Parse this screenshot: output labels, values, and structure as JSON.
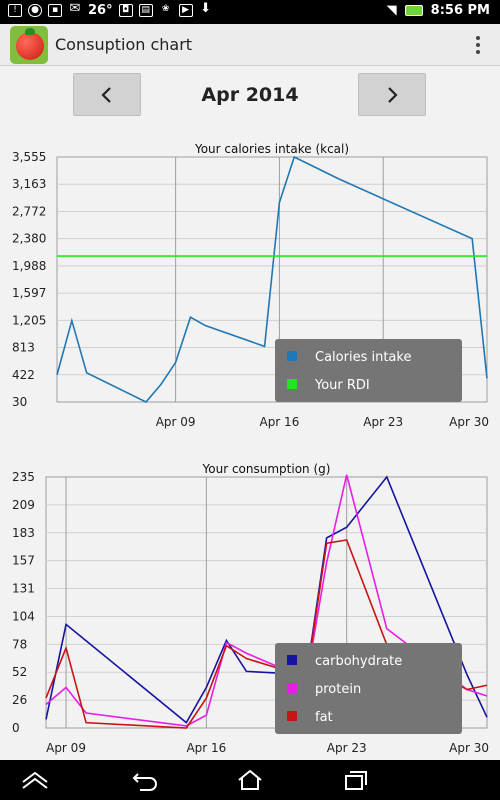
{
  "status_bar": {
    "left_text": "26°",
    "time": "8:56 PM",
    "icons": [
      "notification-icon",
      "media-icon",
      "mail-icon",
      "weather-icon",
      "photo-icon",
      "shopping-icon",
      "file-icon",
      "play-icon",
      "download-icon",
      "wifi-icon",
      "battery-icon"
    ]
  },
  "app_bar": {
    "title": "Consuption chart",
    "icon": "tomato-app-icon"
  },
  "month_nav": {
    "prev_icon": "chevron-left-icon",
    "next_icon": "chevron-right-icon",
    "label": "Apr 2014"
  },
  "colors": {
    "calories_line": "#1f78b4",
    "rdi_line": "#22e61e",
    "carbohydrate": "#1414a0",
    "protein": "#e61ee6",
    "fat": "#c81414",
    "legend_bg": "#757575"
  },
  "chart_data": [
    {
      "type": "line",
      "title": "Your calories intake (kcal)",
      "y_ticks": [
        "3,555",
        "3,163",
        "2,772",
        "2,380",
        "1,988",
        "1,597",
        "1,205",
        "813",
        "422",
        "30"
      ],
      "x_ticks": [
        "Apr 09",
        "Apr 16",
        "Apr 23",
        "Apr 30"
      ],
      "ylim": [
        30,
        3555
      ],
      "xlim": [
        1,
        30
      ],
      "x_tick_days": [
        9,
        16,
        23,
        30
      ],
      "grid": true,
      "legend_position": "bottom-right",
      "series": [
        {
          "name": "Calories intake",
          "x": [
            1,
            2,
            3,
            7,
            8,
            9,
            10,
            11,
            15,
            16,
            17,
            20,
            29,
            30
          ],
          "values": [
            420,
            1200,
            450,
            30,
            280,
            600,
            1250,
            1130,
            830,
            2900,
            3555,
            3240,
            2380,
            370
          ]
        },
        {
          "name": "Your RDI",
          "x": [
            1,
            30
          ],
          "values": [
            2130,
            2130
          ]
        }
      ]
    },
    {
      "type": "line",
      "title": "Your consumption (g)",
      "y_ticks": [
        "235",
        "209",
        "183",
        "157",
        "131",
        "104",
        "78",
        "52",
        "26",
        "0"
      ],
      "x_ticks": [
        "Apr 09",
        "Apr 16",
        "Apr 23",
        "Apr 30"
      ],
      "ylim": [
        0,
        235
      ],
      "xlim": [
        8,
        30
      ],
      "x_tick_days": [
        9,
        16,
        23,
        30
      ],
      "grid": true,
      "legend_position": "bottom-right",
      "series": [
        {
          "name": "carbohydrate",
          "x": [
            8,
            9,
            15,
            16,
            17,
            18,
            21,
            22,
            23,
            25,
            29,
            30
          ],
          "values": [
            8,
            97,
            5,
            38,
            82,
            53,
            50,
            178,
            188,
            235,
            50,
            10
          ]
        },
        {
          "name": "protein",
          "x": [
            8,
            9,
            10,
            15,
            16,
            17,
            18,
            21,
            22,
            23,
            25,
            29,
            30
          ],
          "values": [
            22,
            38,
            14,
            2,
            12,
            80,
            70,
            46,
            155,
            237,
            93,
            36,
            30
          ]
        },
        {
          "name": "fat",
          "x": [
            8,
            9,
            10,
            15,
            16,
            17,
            18,
            21,
            22,
            23,
            25,
            29,
            30
          ],
          "values": [
            28,
            75,
            5,
            0,
            28,
            77,
            65,
            48,
            173,
            176,
            78,
            36,
            40
          ]
        }
      ]
    }
  ]
}
